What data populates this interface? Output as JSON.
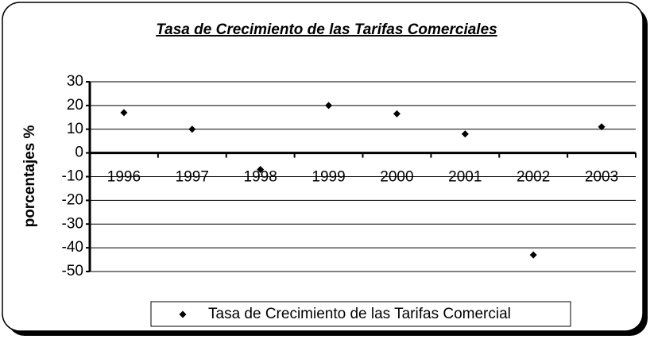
{
  "chart_data": {
    "type": "scatter",
    "title": "Tasa de Crecimiento de las Tarifas Comerciales",
    "y_label": "porcentajes %",
    "categories": [
      "1996",
      "1997",
      "1998",
      "1999",
      "2000",
      "2001",
      "2002",
      "2003"
    ],
    "series": [
      {
        "name": "Tasa de Crecimiento de las Tarifas Comercial",
        "color": "#000000",
        "values": [
          17,
          10,
          -7,
          20,
          16.5,
          8,
          -43,
          11
        ]
      }
    ],
    "ylim": [
      -50,
      30
    ],
    "yticks": [
      -50,
      -40,
      -30,
      -20,
      -10,
      0,
      10,
      20,
      30
    ],
    "grid": true,
    "legend": "bottom"
  }
}
